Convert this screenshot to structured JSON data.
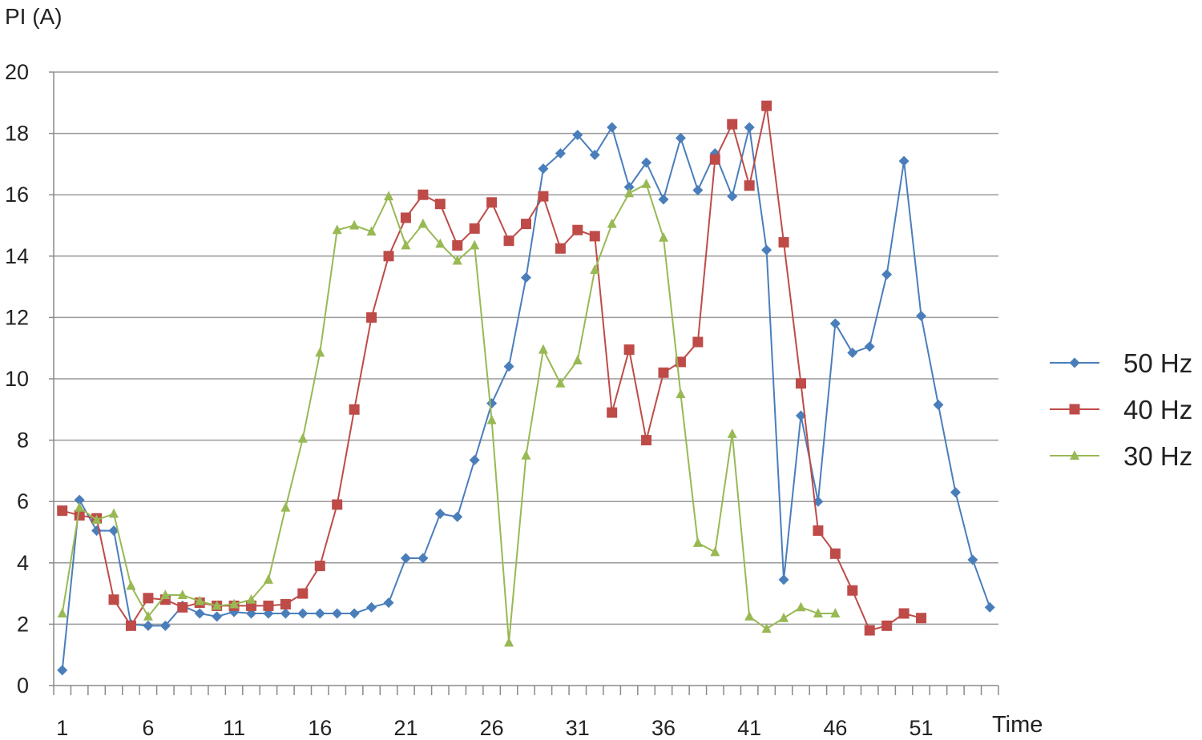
{
  "chart_data": {
    "type": "line",
    "ylabel": "PI (A)",
    "xlabel": "Time",
    "ylim": [
      0,
      20
    ],
    "yticks": [
      0,
      2,
      4,
      6,
      8,
      10,
      12,
      14,
      16,
      18,
      20
    ],
    "xlim": [
      1,
      55
    ],
    "xticks": [
      1,
      6,
      11,
      16,
      21,
      26,
      31,
      36,
      41,
      46,
      51
    ],
    "grid": "horizontal",
    "legend_position": "right",
    "series": [
      {
        "name": "50 Hz",
        "color": "#4A7EBB",
        "marker": "diamond",
        "x": [
          1,
          2,
          3,
          4,
          5,
          6,
          7,
          8,
          9,
          10,
          11,
          12,
          13,
          14,
          15,
          16,
          17,
          18,
          19,
          20,
          21,
          22,
          23,
          24,
          25,
          26,
          27,
          28,
          29,
          30,
          31,
          32,
          33,
          34,
          35,
          36,
          37,
          38,
          39,
          40,
          41,
          42,
          43,
          44,
          45,
          46,
          47,
          48,
          49,
          50,
          51,
          52,
          53,
          54,
          55
        ],
        "values": [
          0.5,
          6.05,
          5.05,
          5.05,
          2.0,
          1.95,
          1.95,
          2.6,
          2.35,
          2.25,
          2.4,
          2.35,
          2.35,
          2.35,
          2.35,
          2.35,
          2.35,
          2.35,
          2.55,
          2.7,
          4.15,
          4.15,
          5.6,
          5.5,
          7.35,
          9.2,
          10.4,
          13.3,
          16.85,
          17.35,
          17.95,
          17.3,
          18.2,
          16.25,
          17.05,
          15.85,
          17.85,
          16.15,
          17.35,
          15.95,
          18.2,
          14.2,
          3.45,
          8.8,
          6.0,
          11.8,
          10.85,
          11.05,
          13.4,
          17.1,
          12.05,
          9.15,
          6.3,
          4.1,
          2.55
        ]
      },
      {
        "name": "40 Hz",
        "color": "#BE4B48",
        "marker": "square",
        "x": [
          1,
          2,
          3,
          4,
          5,
          6,
          7,
          8,
          9,
          10,
          11,
          12,
          13,
          14,
          15,
          16,
          17,
          18,
          19,
          20,
          21,
          22,
          23,
          24,
          25,
          26,
          27,
          28,
          29,
          30,
          31,
          32,
          33,
          34,
          35,
          36,
          37,
          38,
          39,
          40,
          41,
          42,
          43,
          44,
          45,
          46,
          47,
          48,
          49,
          50,
          51
        ],
        "values": [
          5.7,
          5.55,
          5.45,
          2.8,
          1.95,
          2.85,
          2.8,
          2.55,
          2.7,
          2.6,
          2.6,
          2.6,
          2.6,
          2.65,
          3.0,
          3.9,
          5.9,
          9.0,
          12.0,
          14.0,
          15.25,
          16.0,
          15.7,
          14.35,
          14.9,
          15.75,
          14.5,
          15.05,
          15.95,
          14.25,
          14.85,
          14.65,
          8.9,
          10.95,
          8.0,
          10.2,
          10.55,
          11.2,
          17.15,
          18.3,
          16.3,
          18.9,
          14.45,
          9.85,
          5.05,
          4.3,
          3.1,
          1.8,
          1.95,
          2.35,
          2.2
        ]
      },
      {
        "name": "30 Hz",
        "color": "#98B954",
        "marker": "triangle",
        "x": [
          1,
          2,
          3,
          4,
          5,
          6,
          7,
          8,
          9,
          10,
          11,
          12,
          13,
          14,
          15,
          16,
          17,
          18,
          19,
          20,
          21,
          22,
          23,
          24,
          25,
          26,
          27,
          28,
          29,
          30,
          31,
          32,
          33,
          34,
          35,
          36,
          37,
          38,
          39,
          40,
          41,
          42,
          43,
          44,
          45,
          46
        ],
        "values": [
          2.35,
          5.8,
          5.4,
          5.6,
          3.25,
          2.25,
          2.95,
          2.95,
          2.75,
          2.6,
          2.65,
          2.8,
          3.45,
          5.8,
          8.05,
          10.85,
          14.85,
          15.0,
          14.8,
          15.95,
          14.35,
          15.05,
          14.4,
          13.85,
          14.35,
          8.65,
          1.4,
          7.5,
          10.95,
          9.85,
          10.6,
          13.55,
          15.05,
          16.05,
          16.35,
          14.6,
          9.5,
          4.65,
          4.35,
          8.2,
          2.25,
          1.85,
          2.2,
          2.55,
          2.35,
          2.35
        ]
      }
    ]
  }
}
